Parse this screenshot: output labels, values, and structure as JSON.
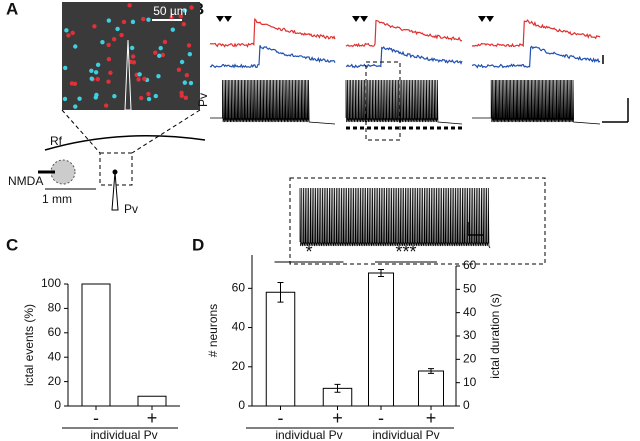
{
  "panel_labels": [
    "A",
    "B",
    "C",
    "D"
  ],
  "panel_a": {
    "scale_bar": "50 µm",
    "rf": "Rf",
    "nmda": "NMDA",
    "scale_mm": "1 mm",
    "pv": "Pv"
  },
  "panel_b": {
    "trace_label": "Pv"
  },
  "chart_data": [
    {
      "type": "bar",
      "y_label": "ictal events (%)",
      "x_label": "individual Pv",
      "categories": [
        "-",
        "+"
      ],
      "values": [
        100,
        8
      ],
      "color": "#ffffff",
      "ylim": [
        0,
        100
      ],
      "yticks": [
        0,
        20,
        40,
        60,
        80,
        100
      ],
      "y_axis_side": "left"
    },
    {
      "type": "bar",
      "y_label": "# neurons",
      "x_label": "individual Pv",
      "categories": [
        "-",
        "+"
      ],
      "values": [
        58,
        9
      ],
      "errors": [
        5,
        2
      ],
      "color": "#ffffff",
      "ylim": [
        0,
        77
      ],
      "yticks": [
        0,
        20,
        40,
        60
      ],
      "y_axis_side": "left",
      "significance": "*"
    },
    {
      "type": "bar",
      "y_label": "ictal duration (s)",
      "x_label": "individual Pv",
      "categories": [
        "-",
        "+"
      ],
      "values": [
        57,
        15
      ],
      "errors": [
        1.5,
        1
      ],
      "color": "#ffffff",
      "ylim": [
        0,
        60
      ],
      "yticks": [
        0,
        10,
        20,
        30,
        40,
        50,
        60
      ],
      "y_axis_side": "right",
      "significance": "***"
    }
  ]
}
